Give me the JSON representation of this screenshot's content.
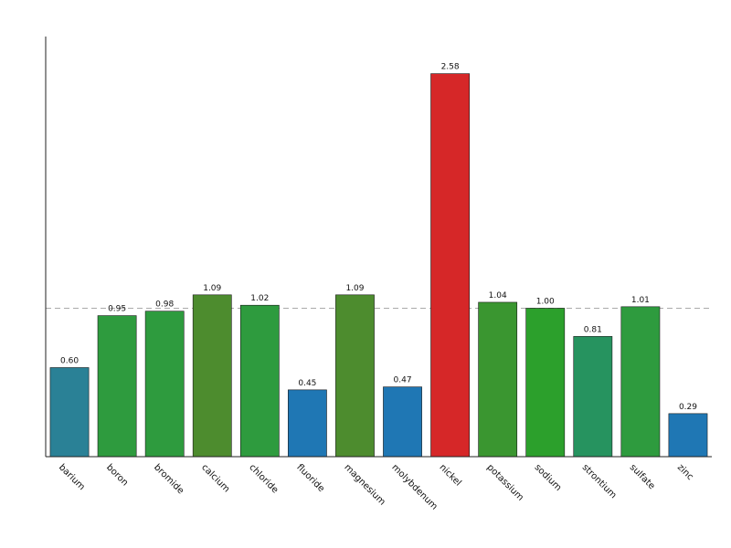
{
  "chart_data": {
    "type": "bar",
    "title": "",
    "xlabel": "",
    "ylabel": "",
    "categories": [
      "barium",
      "boron",
      "bromide",
      "calcium",
      "chloride",
      "fluoride",
      "magnesium",
      "molybdenum",
      "nickel",
      "potassium",
      "sodium",
      "strontium",
      "sulfate",
      "zinc"
    ],
    "values": [
      0.6,
      0.95,
      0.98,
      1.09,
      1.02,
      0.45,
      1.09,
      0.47,
      2.58,
      1.04,
      1.0,
      0.81,
      1.01,
      0.29
    ],
    "value_labels": [
      "0.60",
      "0.95",
      "0.98",
      "1.09",
      "1.02",
      "0.45",
      "1.09",
      "0.47",
      "2.58",
      "1.04",
      "1.00",
      "0.81",
      "1.01",
      "0.29"
    ],
    "colors": [
      "#2a8196",
      "#2e9b3e",
      "#2e9b3e",
      "#4d8c2e",
      "#2e9b3e",
      "#1f77b4",
      "#4d8c2e",
      "#1f77b4",
      "#d62728",
      "#3a9630",
      "#2ca02c",
      "#26935f",
      "#2e9b3e",
      "#1f77b4"
    ],
    "ylim": [
      0,
      2.83
    ],
    "reference_line": 1.0,
    "y_ticks_shown": false,
    "grid": false,
    "legend": "none"
  }
}
